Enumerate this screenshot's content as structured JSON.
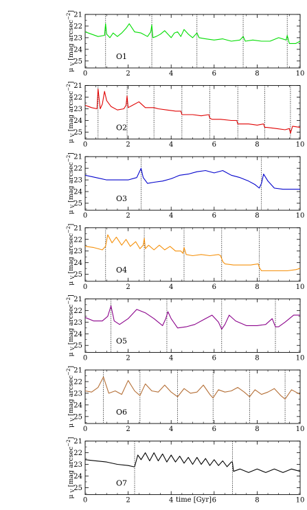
{
  "chart_data": {
    "type": "line",
    "xlabel": "time [Gyr]",
    "ylabel": "μ_V [mag arcsec⁻²]",
    "ylabel_parts": {
      "mu": "μ",
      "sub": "V",
      "unit": "[mag arcsec",
      "exp": "−2",
      "close": "]"
    },
    "xlim": [
      0,
      10
    ],
    "ylim": [
      25.6,
      21
    ],
    "x_ticks": [
      "0",
      "2",
      "4",
      "6",
      "8",
      "10"
    ],
    "y_ticks": [
      "21",
      "22",
      "23",
      "24",
      "25"
    ],
    "y_inverted": true,
    "panels": [
      {
        "name": "O1",
        "color": "#00dd00",
        "pericenters": [
          0.95,
          3.1,
          5.2,
          7.35,
          9.4
        ],
        "x": [
          0,
          0.3,
          0.6,
          0.9,
          0.95,
          1.0,
          1.15,
          1.3,
          1.5,
          1.7,
          1.9,
          2.05,
          2.3,
          2.6,
          2.9,
          3.05,
          3.1,
          3.15,
          3.3,
          3.5,
          3.7,
          3.9,
          4.0,
          4.15,
          4.3,
          4.45,
          4.6,
          4.8,
          5.0,
          5.15,
          5.2,
          5.3,
          5.6,
          6.0,
          6.4,
          6.8,
          7.2,
          7.35,
          7.45,
          7.8,
          8.2,
          8.6,
          9.0,
          9.35,
          9.4,
          9.5,
          9.8,
          10
        ],
        "y": [
          22.5,
          22.7,
          22.9,
          22.8,
          21.8,
          22.7,
          23.0,
          22.6,
          22.9,
          22.6,
          22.2,
          21.8,
          22.5,
          22.6,
          22.9,
          22.5,
          21.9,
          23.0,
          22.9,
          22.7,
          22.4,
          22.8,
          23.0,
          22.6,
          22.5,
          22.9,
          22.3,
          22.7,
          23.0,
          22.7,
          22.6,
          23.0,
          23.1,
          23.2,
          23.1,
          23.3,
          23.2,
          22.9,
          23.3,
          23.2,
          23.3,
          23.3,
          23.0,
          23.2,
          22.8,
          23.5,
          23.5,
          23.3
        ]
      },
      {
        "name": "O2",
        "color": "#e00000",
        "pericenters": [
          0.6,
          1.95,
          3.2,
          4.5,
          5.8,
          7.1,
          8.35,
          9.55
        ],
        "x": [
          0,
          0.3,
          0.55,
          0.6,
          0.7,
          0.8,
          0.9,
          1.0,
          1.2,
          1.5,
          1.8,
          1.9,
          1.95,
          2.0,
          2.2,
          2.5,
          2.8,
          3.2,
          3.4,
          3.8,
          4.2,
          4.45,
          4.5,
          4.6,
          5.0,
          5.4,
          5.75,
          5.8,
          5.9,
          6.3,
          6.8,
          7.05,
          7.1,
          7.2,
          7.6,
          8.0,
          8.3,
          8.35,
          8.45,
          8.9,
          9.3,
          9.5,
          9.55,
          9.65,
          10
        ],
        "y": [
          22.7,
          22.9,
          23.0,
          21.3,
          23.0,
          22.6,
          21.5,
          22.3,
          22.8,
          23.1,
          23.0,
          22.7,
          21.9,
          22.9,
          22.7,
          22.4,
          22.9,
          22.9,
          23.0,
          23.1,
          23.2,
          23.2,
          23.5,
          23.5,
          23.5,
          23.6,
          23.5,
          23.8,
          23.9,
          23.9,
          24.0,
          24.0,
          24.3,
          24.3,
          24.3,
          24.4,
          24.3,
          24.6,
          24.6,
          24.7,
          24.8,
          24.7,
          25.1,
          24.5,
          24.6
        ]
      },
      {
        "name": "O3",
        "color": "#0000cc",
        "pericenters": [
          2.6,
          8.2
        ],
        "x": [
          0,
          0.5,
          1.0,
          1.5,
          2.0,
          2.4,
          2.5,
          2.6,
          2.7,
          2.9,
          3.2,
          3.6,
          4.0,
          4.4,
          4.8,
          5.2,
          5.6,
          6.0,
          6.4,
          6.8,
          7.2,
          7.6,
          7.9,
          8.1,
          8.2,
          8.3,
          8.5,
          8.8,
          9.2,
          9.6,
          10
        ],
        "y": [
          22.6,
          22.8,
          23.0,
          23.0,
          23.0,
          22.8,
          22.4,
          22.0,
          22.8,
          23.3,
          23.2,
          23.1,
          22.9,
          22.6,
          22.5,
          22.3,
          22.2,
          22.4,
          22.2,
          22.6,
          22.8,
          23.1,
          23.4,
          23.7,
          23.3,
          22.5,
          23.1,
          23.7,
          23.8,
          23.8,
          23.8
        ]
      },
      {
        "name": "O4",
        "color": "#f5900a",
        "pericenters": [
          0.95,
          2.75,
          4.6,
          6.35,
          8.1
        ],
        "x": [
          0,
          0.4,
          0.8,
          0.95,
          1.05,
          1.25,
          1.45,
          1.7,
          1.9,
          2.1,
          2.35,
          2.55,
          2.7,
          2.75,
          2.8,
          2.95,
          3.2,
          3.45,
          3.7,
          3.95,
          4.2,
          4.45,
          4.55,
          4.6,
          4.7,
          5.0,
          5.4,
          5.8,
          6.2,
          6.3,
          6.4,
          6.5,
          6.9,
          7.3,
          7.7,
          8.05,
          8.1,
          8.2,
          8.6,
          9.0,
          9.4,
          9.8,
          10
        ],
        "y": [
          22.6,
          22.7,
          22.9,
          22.6,
          21.6,
          22.3,
          21.8,
          22.5,
          22.0,
          22.6,
          22.2,
          22.8,
          22.5,
          21.9,
          22.8,
          22.5,
          22.9,
          22.5,
          22.9,
          22.6,
          23.0,
          23.0,
          23.2,
          22.7,
          23.3,
          23.4,
          23.3,
          23.4,
          23.3,
          23.4,
          23.9,
          24.1,
          24.2,
          24.2,
          24.2,
          24.1,
          24.4,
          24.7,
          24.7,
          24.7,
          24.7,
          24.6,
          24.5
        ]
      },
      {
        "name": "O5",
        "color": "#8a008a",
        "pericenters": [
          1.2,
          3.8,
          6.35,
          8.85
        ],
        "x": [
          0,
          0.4,
          0.8,
          1.05,
          1.2,
          1.35,
          1.6,
          2.0,
          2.4,
          2.8,
          3.2,
          3.6,
          3.75,
          3.85,
          4.0,
          4.3,
          4.7,
          5.1,
          5.5,
          5.9,
          6.2,
          6.35,
          6.5,
          6.7,
          7.0,
          7.5,
          8.0,
          8.4,
          8.7,
          8.85,
          9.0,
          9.3,
          9.7,
          10
        ],
        "y": [
          22.6,
          22.9,
          22.9,
          22.5,
          21.6,
          22.9,
          23.2,
          22.7,
          21.9,
          22.2,
          22.7,
          23.3,
          22.7,
          22.1,
          22.7,
          23.5,
          23.4,
          23.2,
          22.8,
          22.4,
          23.0,
          23.6,
          23.2,
          22.4,
          22.9,
          23.3,
          23.3,
          23.2,
          22.7,
          23.4,
          23.4,
          23.0,
          22.4,
          22.4
        ]
      },
      {
        "name": "O6",
        "color": "#b46e35",
        "pericenters": [
          0.85,
          2.55,
          4.3,
          5.95,
          7.65,
          9.3
        ],
        "x": [
          0,
          0.3,
          0.6,
          0.85,
          1.1,
          1.4,
          1.7,
          2.0,
          2.3,
          2.55,
          2.8,
          3.1,
          3.4,
          3.7,
          4.0,
          4.3,
          4.6,
          4.9,
          5.2,
          5.5,
          5.8,
          5.95,
          6.2,
          6.5,
          6.8,
          7.1,
          7.4,
          7.65,
          7.9,
          8.2,
          8.5,
          8.8,
          9.1,
          9.3,
          9.6,
          10
        ],
        "y": [
          22.8,
          22.9,
          22.5,
          21.6,
          23.0,
          22.8,
          23.1,
          21.9,
          22.8,
          23.2,
          22.2,
          22.8,
          22.9,
          22.3,
          22.9,
          23.3,
          22.6,
          23.0,
          22.9,
          22.3,
          23.1,
          23.4,
          22.7,
          22.9,
          22.8,
          22.5,
          22.9,
          23.3,
          22.7,
          23.1,
          22.9,
          22.6,
          23.2,
          23.5,
          22.7,
          23.1
        ]
      },
      {
        "name": "O7",
        "color": "#000000",
        "pericenters": [
          2.3,
          6.85
        ],
        "x": [
          0,
          0.5,
          1.0,
          1.5,
          2.0,
          2.25,
          2.3,
          2.45,
          2.6,
          2.8,
          3.0,
          3.2,
          3.4,
          3.6,
          3.8,
          4.0,
          4.2,
          4.4,
          4.6,
          4.8,
          5.0,
          5.2,
          5.4,
          5.6,
          5.8,
          6.0,
          6.2,
          6.4,
          6.6,
          6.8,
          6.85,
          6.9,
          7.2,
          7.6,
          8.0,
          8.4,
          8.8,
          9.2,
          9.6,
          10
        ],
        "y": [
          22.6,
          22.7,
          22.8,
          23.0,
          23.1,
          23.2,
          23.2,
          22.2,
          22.6,
          22.0,
          22.7,
          22.0,
          22.7,
          22.1,
          22.8,
          22.2,
          22.8,
          22.3,
          22.9,
          22.4,
          23.0,
          22.4,
          23.0,
          22.5,
          23.1,
          22.6,
          23.1,
          22.7,
          23.2,
          22.8,
          22.8,
          23.6,
          23.4,
          23.7,
          23.4,
          23.7,
          23.4,
          23.7,
          23.4,
          23.6
        ]
      }
    ]
  }
}
